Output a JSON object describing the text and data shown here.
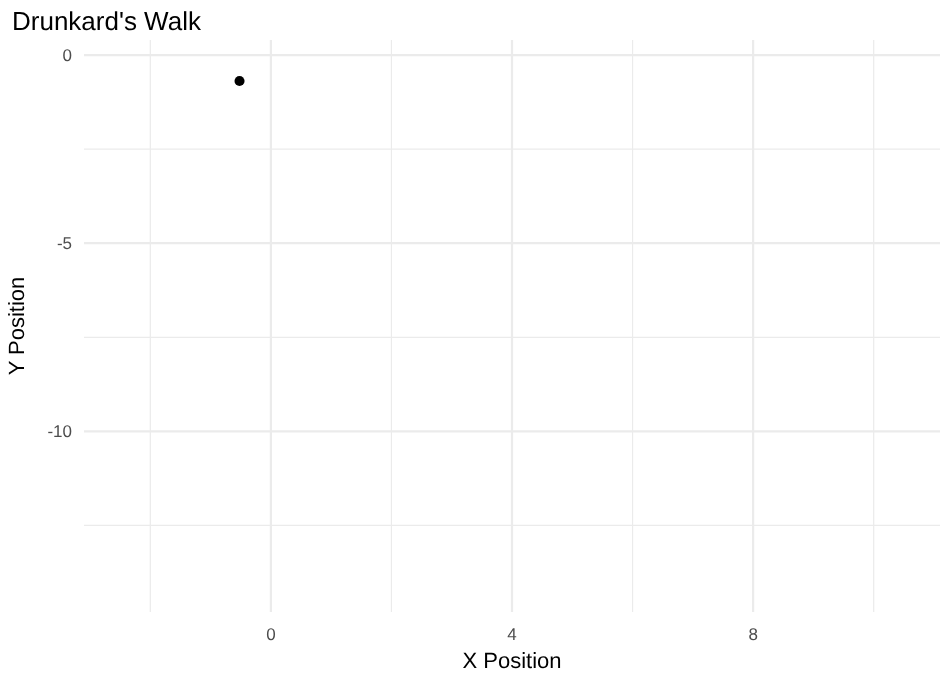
{
  "chart_data": {
    "type": "scatter",
    "title": "Drunkard's Walk",
    "xlabel": "X Position",
    "ylabel": "Y Position",
    "x": [
      -0.52
    ],
    "values": [
      -0.69
    ],
    "color": "#000000",
    "marker": "circle",
    "grid": true,
    "xlim": [
      -3.1,
      11.1
    ],
    "ylim": [
      -14.8,
      0.4
    ],
    "xticks": [
      {
        "value": -2,
        "label": null
      },
      0,
      {
        "value": 2,
        "label": null
      },
      4,
      {
        "value": 6,
        "label": null
      },
      8,
      {
        "value": 10,
        "label": null
      }
    ],
    "yticks": [
      {
        "value": -12.5,
        "label": null
      },
      -10,
      {
        "value": -7.5,
        "label": null
      },
      -5,
      {
        "value": -2.5,
        "label": null
      },
      0
    ]
  }
}
